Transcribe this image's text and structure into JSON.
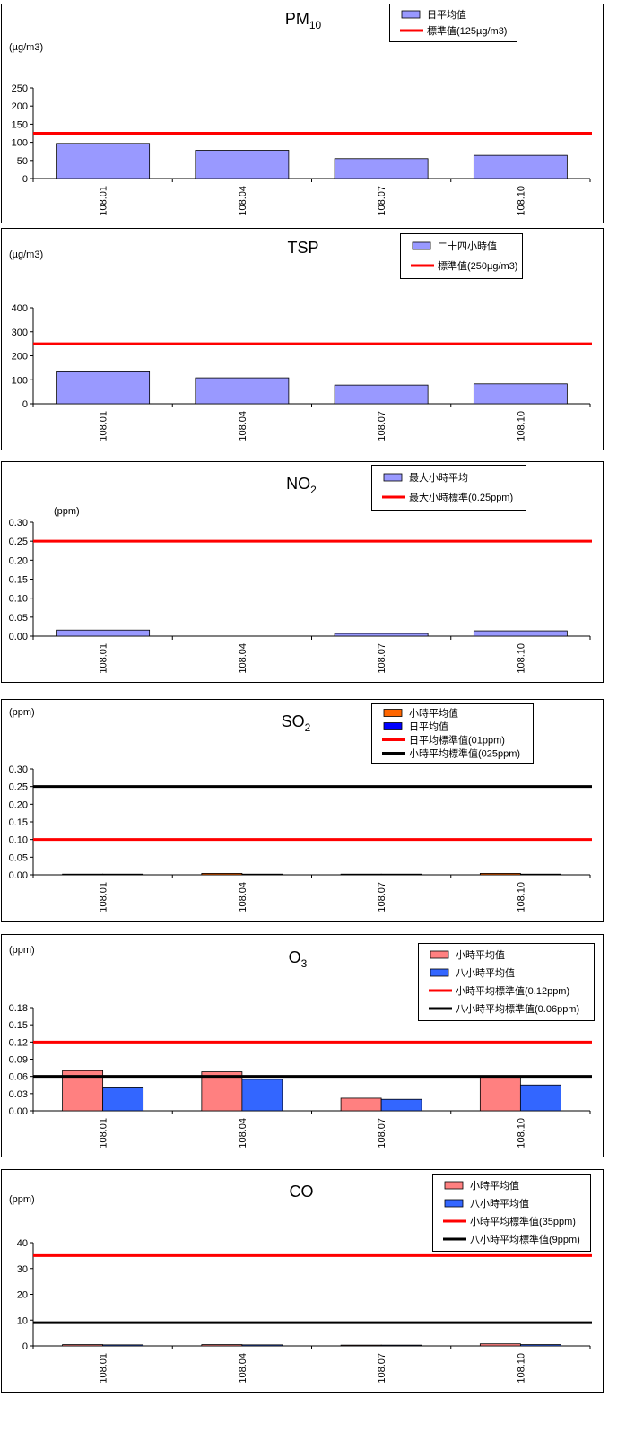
{
  "chart_data": [
    {
      "type": "bar",
      "title": "PM",
      "title_sub": "10",
      "unit": "(µg/m3)",
      "categories": [
        "108.01",
        "108.04",
        "108.07",
        "108.10"
      ],
      "yticks": [
        "0",
        "50",
        "100",
        "150",
        "200",
        "250"
      ],
      "ylim": [
        0,
        250
      ],
      "series": [
        {
          "name": "日平均值",
          "color": "#9999ff",
          "values": [
            97,
            78,
            55,
            64
          ]
        }
      ],
      "lines": [
        {
          "name": "標準值(125µg/m3)",
          "color": "#ff0000",
          "value": 125
        }
      ]
    },
    {
      "type": "bar",
      "title": "TSP",
      "title_sub": "",
      "unit": "(µg/m3)",
      "categories": [
        "108.01",
        "108.04",
        "108.07",
        "108.10"
      ],
      "yticks": [
        "0",
        "100",
        "200",
        "300",
        "400"
      ],
      "ylim": [
        0,
        400
      ],
      "series": [
        {
          "name": "二十四小時值",
          "color": "#9999ff",
          "values": [
            133,
            108,
            78,
            83
          ]
        }
      ],
      "lines": [
        {
          "name": "標準值(250µg/m3)",
          "color": "#ff0000",
          "value": 250
        }
      ]
    },
    {
      "type": "bar",
      "title": "NO",
      "title_sub": "2",
      "unit": "(ppm)",
      "categories": [
        "108.01",
        "108.04",
        "108.07",
        "108.10"
      ],
      "yticks": [
        "0.00",
        "0.05",
        "0.10",
        "0.15",
        "0.20",
        "0.25",
        "0.30"
      ],
      "ylim": [
        0,
        0.3
      ],
      "series": [
        {
          "name": "最大小時平均",
          "color": "#9999ff",
          "values": [
            0.016,
            0.0,
            0.007,
            0.014
          ]
        }
      ],
      "lines": [
        {
          "name": "最大小時標準(0.25ppm)",
          "color": "#ff0000",
          "value": 0.25
        }
      ]
    },
    {
      "type": "bar",
      "title": "SO",
      "title_sub": "2",
      "unit": "(ppm)",
      "categories": [
        "108.01",
        "108.04",
        "108.07",
        "108.10"
      ],
      "yticks": [
        "0.00",
        "0.05",
        "0.10",
        "0.15",
        "0.20",
        "0.25",
        "0.30"
      ],
      "ylim": [
        0,
        0.3
      ],
      "series": [
        {
          "name": "小時平均值",
          "color": "#ff6600",
          "values": [
            0.002,
            0.004,
            0.002,
            0.004
          ]
        },
        {
          "name": "日平均值",
          "color": "#0000ff",
          "values": [
            0.002,
            0.002,
            0.002,
            0.002
          ]
        }
      ],
      "lines": [
        {
          "name": "日平均標準值(01ppm)",
          "color": "#ff0000",
          "value": 0.1
        },
        {
          "name": "小時平均標準值(025ppm)",
          "color": "#000000",
          "value": 0.25
        }
      ]
    },
    {
      "type": "bar",
      "title": "O",
      "title_sub": "3",
      "unit": "(ppm)",
      "categories": [
        "108.01",
        "108.04",
        "108.07",
        "108.10"
      ],
      "yticks": [
        "0.00",
        "0.03",
        "0.06",
        "0.09",
        "0.12",
        "0.15",
        "0.18"
      ],
      "ylim": [
        0,
        0.18
      ],
      "series": [
        {
          "name": "小時平均值",
          "color": "#ff8080",
          "values": [
            0.07,
            0.068,
            0.022,
            0.06
          ]
        },
        {
          "name": "八小時平均值",
          "color": "#3366ff",
          "values": [
            0.04,
            0.055,
            0.02,
            0.045
          ]
        }
      ],
      "lines": [
        {
          "name": "小時平均標準值(0.12ppm)",
          "color": "#ff0000",
          "value": 0.12
        },
        {
          "name": "八小時平均標準值(0.06ppm)",
          "color": "#000000",
          "value": 0.06
        }
      ]
    },
    {
      "type": "bar",
      "title": "CO",
      "title_sub": "",
      "unit": "(ppm)",
      "categories": [
        "108.01",
        "108.04",
        "108.07",
        "108.10"
      ],
      "yticks": [
        "0",
        "10",
        "20",
        "30",
        "40"
      ],
      "ylim": [
        0,
        40
      ],
      "series": [
        {
          "name": "小時平均值",
          "color": "#ff8080",
          "values": [
            0.5,
            0.5,
            0.3,
            0.8
          ]
        },
        {
          "name": "八小時平均值",
          "color": "#3366ff",
          "values": [
            0.4,
            0.4,
            0.3,
            0.5
          ]
        }
      ],
      "lines": [
        {
          "name": "小時平均標準值(35ppm)",
          "color": "#ff0000",
          "value": 35
        },
        {
          "name": "八小時平均標準值(9ppm)",
          "color": "#000000",
          "value": 9
        }
      ]
    }
  ]
}
